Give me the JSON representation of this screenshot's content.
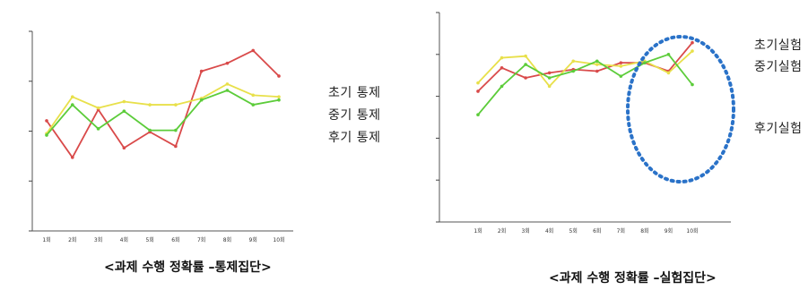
{
  "chart_data": [
    {
      "type": "line",
      "caption": "<과제 수행 정확률 –통제집단>",
      "categories": [
        "1",
        "2",
        "3",
        "4",
        "5",
        "6",
        "7",
        "8",
        "9",
        "10"
      ],
      "ylim": [
        0,
        125
      ],
      "yticks": [
        "",
        "",
        "",
        "",
        ""
      ],
      "xticks": [
        "1회",
        "2회",
        "3회",
        "4회",
        "5회",
        "6회",
        "7회",
        "8회",
        "9회",
        "10회"
      ],
      "legend_position": "right",
      "series": [
        {
          "name": "초기 통제",
          "color": "#d94a4a",
          "values": [
            69,
            46,
            76,
            52,
            62,
            53,
            100,
            105,
            113,
            97
          ]
        },
        {
          "name": "중기 통제",
          "color": "#e8e04a",
          "values": [
            61,
            84,
            77,
            81,
            79,
            79,
            83,
            92,
            85,
            84
          ]
        },
        {
          "name": "후기 통제",
          "color": "#5ccc3a",
          "values": [
            60,
            79,
            64,
            75,
            63,
            63,
            82,
            88,
            79,
            82
          ]
        }
      ]
    },
    {
      "type": "line",
      "caption": "<과제 수행 정확률 –실험집단>",
      "categories": [
        "1",
        "2",
        "3",
        "4",
        "5",
        "6",
        "7",
        "8",
        "9",
        "10"
      ],
      "ylim": [
        0,
        125
      ],
      "yticks": [
        "",
        "",
        "",
        "",
        "",
        ""
      ],
      "xticks": [
        "1회",
        "2회",
        "3회",
        "4회",
        "5회",
        "6회",
        "7회",
        "8회",
        "9회",
        "10회"
      ],
      "legend_position": "right",
      "series": [
        {
          "name": "초기실험",
          "color": "#d94a4a",
          "values": [
            78,
            92,
            86,
            89,
            91,
            90,
            95,
            95,
            90,
            107
          ]
        },
        {
          "name": "중기실험",
          "color": "#e8e04a",
          "values": [
            83,
            98,
            99,
            81,
            96,
            94,
            93,
            96,
            89,
            102
          ]
        },
        {
          "name": "후기실험",
          "color": "#5ccc3a",
          "values": [
            64,
            81,
            94,
            86,
            90,
            96,
            87,
            95,
            100,
            82
          ]
        }
      ]
    }
  ]
}
